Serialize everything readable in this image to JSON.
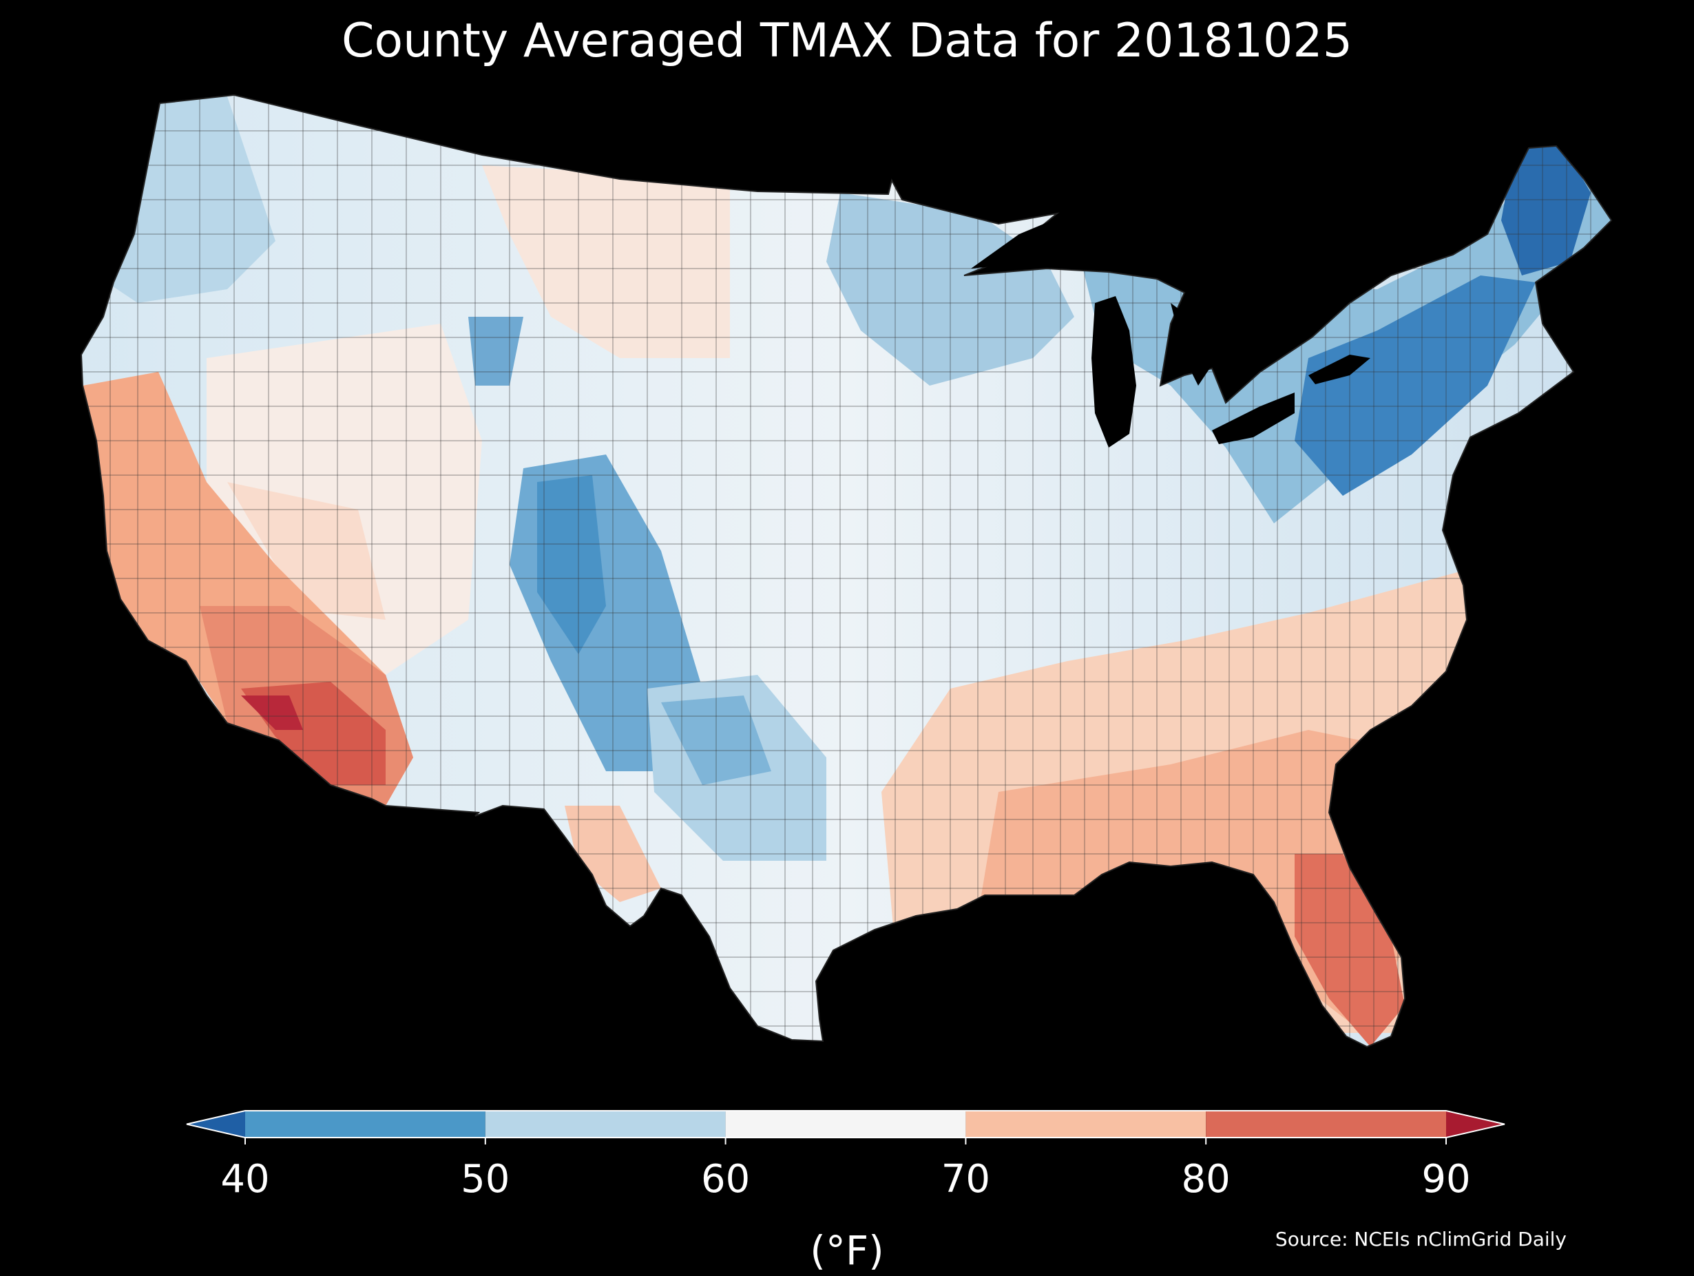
{
  "title": "County Averaged TMAX Data for 20181025",
  "colorbar": {
    "ticks": [
      "40",
      "50",
      "60",
      "70",
      "80",
      "90"
    ],
    "bins": [
      {
        "range": [
          40,
          50
        ],
        "color": "#4b98c8"
      },
      {
        "range": [
          50,
          60
        ],
        "color": "#b7d6e8"
      },
      {
        "range": [
          60,
          70
        ],
        "color": "#f5f5f5"
      },
      {
        "range": [
          70,
          80
        ],
        "color": "#f8c0a3"
      },
      {
        "range": [
          80,
          90
        ],
        "color": "#db6a58"
      }
    ],
    "extend_low_color": "#1f5fa5",
    "extend_high_color": "#a81b30",
    "units": "(°F)"
  },
  "source": "Source: NCEIs nClimGrid Daily"
}
